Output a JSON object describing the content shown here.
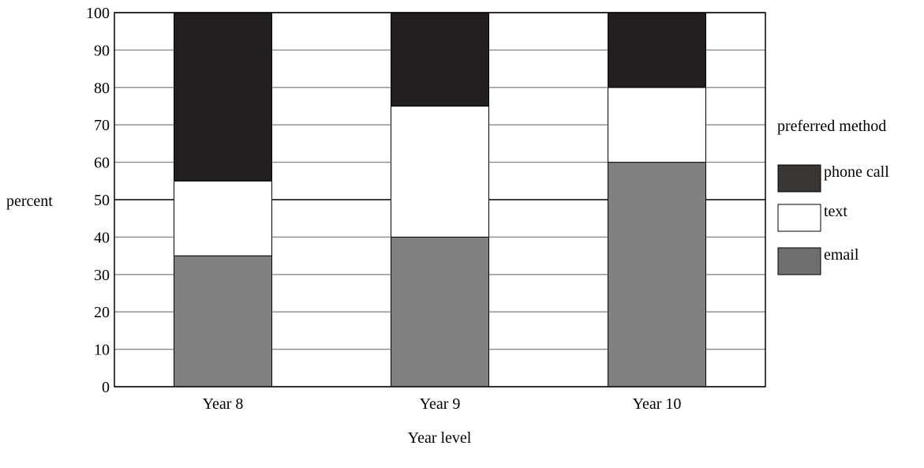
{
  "chart_data": {
    "type": "bar",
    "stacked": true,
    "categories": [
      "Year 8",
      "Year 9",
      "Year 10"
    ],
    "series": [
      {
        "name": "email",
        "color": "#808080",
        "values": [
          35,
          40,
          60
        ]
      },
      {
        "name": "text",
        "color": "#ffffff",
        "values": [
          20,
          35,
          20
        ]
      },
      {
        "name": "phone call",
        "color": "#231f20",
        "values": [
          45,
          25,
          20
        ]
      }
    ],
    "title": "",
    "xlabel": "Year level",
    "ylabel": "percent",
    "ylim": [
      0,
      100
    ],
    "yticks": [
      0,
      10,
      20,
      30,
      40,
      50,
      60,
      70,
      80,
      90,
      100
    ],
    "grid": true,
    "legend": {
      "title": "preferred method",
      "placement": "right",
      "order": [
        "phone call",
        "text",
        "email"
      ]
    }
  }
}
